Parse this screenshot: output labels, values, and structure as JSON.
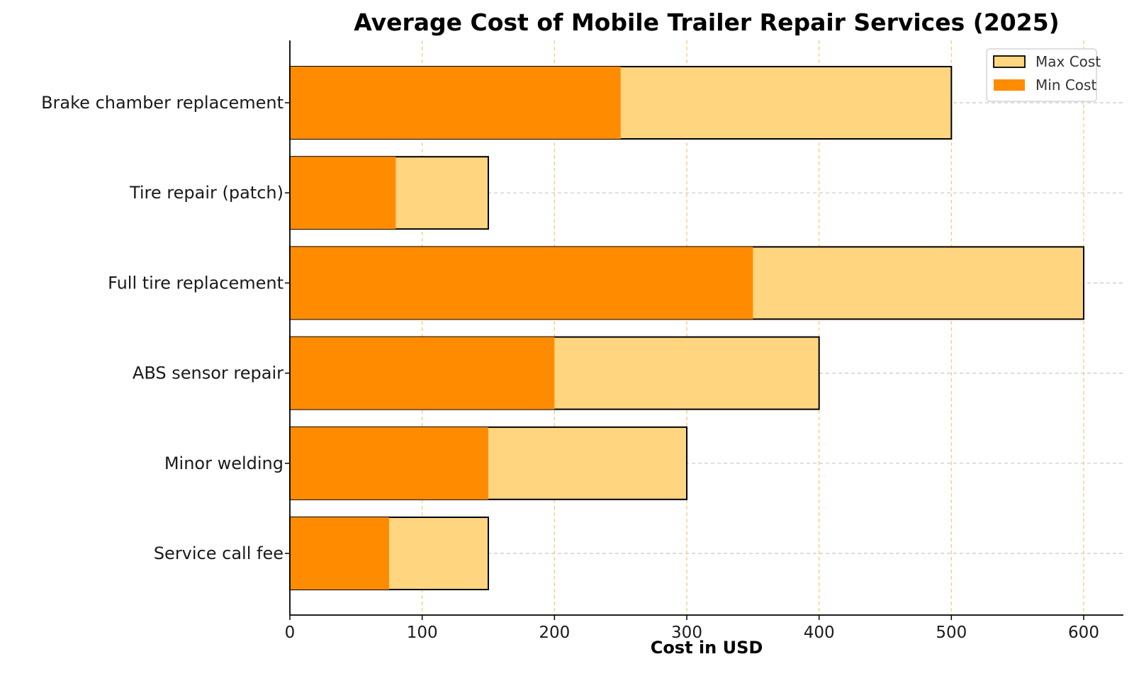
{
  "chart_data": {
    "type": "bar",
    "orientation": "horizontal",
    "title": "Average Cost of Mobile Trailer Repair Services (2025)",
    "xlabel": "Cost in USD",
    "ylabel": "",
    "xlim": [
      0,
      630
    ],
    "xticks": [
      0,
      100,
      200,
      300,
      400,
      500,
      600
    ],
    "grid": true,
    "legend_position": "top-right",
    "categories": [
      "Brake chamber replacement",
      "Tire repair (patch)",
      "Full tire replacement",
      "ABS sensor repair",
      "Minor welding",
      "Service call fee"
    ],
    "series": [
      {
        "name": "Max Cost",
        "values": [
          500,
          150,
          600,
          400,
          300,
          150
        ],
        "color": "#FFD580"
      },
      {
        "name": "Min Cost",
        "values": [
          250,
          80,
          350,
          200,
          150,
          75
        ],
        "color": "#FF8C00"
      }
    ]
  }
}
